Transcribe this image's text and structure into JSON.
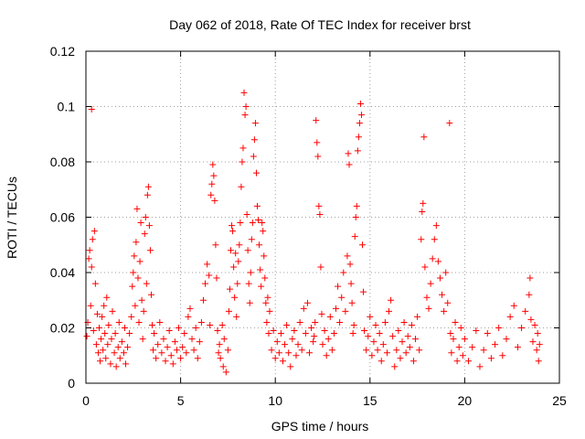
{
  "chart_data": {
    "type": "scatter",
    "title": "Day 062 of 2018, Rate Of TEC Index for receiver brst",
    "xlabel": "GPS time / hours",
    "ylabel": "ROTI / TECUs",
    "xlim": [
      0,
      25
    ],
    "ylim": [
      0,
      0.12
    ],
    "x_ticks": [
      0,
      5,
      10,
      15,
      20,
      25
    ],
    "x_tick_labels": [
      "0",
      "5",
      "10",
      "15",
      "20",
      "25"
    ],
    "y_ticks": [
      0,
      0.02,
      0.04,
      0.06,
      0.08,
      0.1,
      0.12
    ],
    "y_tick_labels": [
      "0",
      "0.02",
      "0.04",
      "0.06",
      "0.08",
      "0.1",
      "0.12"
    ],
    "grid": true,
    "marker": "+",
    "color": "#ff0000",
    "series": [
      {
        "name": "ROTI",
        "points": [
          [
            0.05,
            0.017
          ],
          [
            0.1,
            0.022
          ],
          [
            0.15,
            0.045
          ],
          [
            0.2,
            0.048
          ],
          [
            0.25,
            0.028
          ],
          [
            0.3,
            0.042
          ],
          [
            0.3,
            0.099
          ],
          [
            0.35,
            0.052
          ],
          [
            0.4,
            0.019
          ],
          [
            0.45,
            0.055
          ],
          [
            0.5,
            0.036
          ],
          [
            0.55,
            0.014
          ],
          [
            0.6,
            0.025
          ],
          [
            0.65,
            0.011
          ],
          [
            0.7,
            0.02
          ],
          [
            0.75,
            0.008
          ],
          [
            0.8,
            0.016
          ],
          [
            0.85,
            0.024
          ],
          [
            0.9,
            0.012
          ],
          [
            0.95,
            0.028
          ],
          [
            1.0,
            0.018
          ],
          [
            1.05,
            0.009
          ],
          [
            1.1,
            0.031
          ],
          [
            1.15,
            0.014
          ],
          [
            1.2,
            0.021
          ],
          [
            1.3,
            0.007
          ],
          [
            1.35,
            0.016
          ],
          [
            1.4,
            0.026
          ],
          [
            1.5,
            0.011
          ],
          [
            1.55,
            0.018
          ],
          [
            1.6,
            0.006
          ],
          [
            1.7,
            0.013
          ],
          [
            1.75,
            0.022
          ],
          [
            1.8,
            0.009
          ],
          [
            1.9,
            0.015
          ],
          [
            2.0,
            0.011
          ],
          [
            2.05,
            0.02
          ],
          [
            2.1,
            0.007
          ],
          [
            2.2,
            0.013
          ],
          [
            2.3,
            0.018
          ],
          [
            2.4,
            0.024
          ],
          [
            2.45,
            0.035
          ],
          [
            2.5,
            0.04
          ],
          [
            2.55,
            0.046
          ],
          [
            2.6,
            0.028
          ],
          [
            2.65,
            0.051
          ],
          [
            2.7,
            0.063
          ],
          [
            2.75,
            0.038
          ],
          [
            2.8,
            0.022
          ],
          [
            2.85,
            0.044
          ],
          [
            2.9,
            0.058
          ],
          [
            2.95,
            0.03
          ],
          [
            3.0,
            0.016
          ],
          [
            3.05,
            0.026
          ],
          [
            3.1,
            0.054
          ],
          [
            3.15,
            0.06
          ],
          [
            3.2,
            0.036
          ],
          [
            3.25,
            0.068
          ],
          [
            3.3,
            0.071
          ],
          [
            3.35,
            0.057
          ],
          [
            3.4,
            0.048
          ],
          [
            3.45,
            0.032
          ],
          [
            3.5,
            0.021
          ],
          [
            3.55,
            0.012
          ],
          [
            3.6,
            0.018
          ],
          [
            3.7,
            0.009
          ],
          [
            3.8,
            0.014
          ],
          [
            3.9,
            0.022
          ],
          [
            4.0,
            0.011
          ],
          [
            4.1,
            0.016
          ],
          [
            4.2,
            0.008
          ],
          [
            4.3,
            0.013
          ],
          [
            4.4,
            0.019
          ],
          [
            4.5,
            0.01
          ],
          [
            4.6,
            0.007
          ],
          [
            4.7,
            0.015
          ],
          [
            4.8,
            0.012
          ],
          [
            4.9,
            0.02
          ],
          [
            5.0,
            0.009
          ],
          [
            5.1,
            0.013
          ],
          [
            5.2,
            0.018
          ],
          [
            5.3,
            0.011
          ],
          [
            5.4,
            0.024
          ],
          [
            5.5,
            0.027
          ],
          [
            5.6,
            0.016
          ],
          [
            5.7,
            0.012
          ],
          [
            5.8,
            0.02
          ],
          [
            5.9,
            0.009
          ],
          [
            6.0,
            0.015
          ],
          [
            6.1,
            0.022
          ],
          [
            6.2,
            0.03
          ],
          [
            6.3,
            0.036
          ],
          [
            6.4,
            0.043
          ],
          [
            6.5,
            0.039
          ],
          [
            6.55,
            0.021
          ],
          [
            6.6,
            0.068
          ],
          [
            6.65,
            0.072
          ],
          [
            6.7,
            0.079
          ],
          [
            6.75,
            0.075
          ],
          [
            6.8,
            0.066
          ],
          [
            6.85,
            0.05
          ],
          [
            6.9,
            0.038
          ],
          [
            6.95,
            0.019
          ],
          [
            7.0,
            0.011
          ],
          [
            7.05,
            0.014
          ],
          [
            7.1,
            0.009
          ],
          [
            7.2,
            0.021
          ],
          [
            7.25,
            0.006
          ],
          [
            7.3,
            0.016
          ],
          [
            7.4,
            0.004
          ],
          [
            7.5,
            0.012
          ],
          [
            7.55,
            0.026
          ],
          [
            7.6,
            0.034
          ],
          [
            7.65,
            0.048
          ],
          [
            7.7,
            0.057
          ],
          [
            7.75,
            0.055
          ],
          [
            7.8,
            0.042
          ],
          [
            7.85,
            0.031
          ],
          [
            7.9,
            0.047
          ],
          [
            7.95,
            0.024
          ],
          [
            8.0,
            0.036
          ],
          [
            8.05,
            0.044
          ],
          [
            8.1,
            0.05
          ],
          [
            8.15,
            0.058
          ],
          [
            8.2,
            0.071
          ],
          [
            8.25,
            0.08
          ],
          [
            8.3,
            0.085
          ],
          [
            8.35,
            0.105
          ],
          [
            8.4,
            0.097
          ],
          [
            8.45,
            0.1
          ],
          [
            8.5,
            0.061
          ],
          [
            8.55,
            0.048
          ],
          [
            8.6,
            0.036
          ],
          [
            8.65,
            0.029
          ],
          [
            8.7,
            0.04
          ],
          [
            8.75,
            0.052
          ],
          [
            8.8,
            0.058
          ],
          [
            8.85,
            0.082
          ],
          [
            8.9,
            0.088
          ],
          [
            8.95,
            0.094
          ],
          [
            9.0,
            0.076
          ],
          [
            9.05,
            0.064
          ],
          [
            9.1,
            0.059
          ],
          [
            9.15,
            0.05
          ],
          [
            9.2,
            0.041
          ],
          [
            9.25,
            0.035
          ],
          [
            9.3,
            0.058
          ],
          [
            9.35,
            0.055
          ],
          [
            9.4,
            0.046
          ],
          [
            9.45,
            0.038
          ],
          [
            9.5,
            0.029
          ],
          [
            9.55,
            0.022
          ],
          [
            9.6,
            0.031
          ],
          [
            9.65,
            0.018
          ],
          [
            9.7,
            0.026
          ],
          [
            9.8,
            0.012
          ],
          [
            9.9,
            0.019
          ],
          [
            10.0,
            0.009
          ],
          [
            10.1,
            0.015
          ],
          [
            10.2,
            0.011
          ],
          [
            10.3,
            0.018
          ],
          [
            10.4,
            0.008
          ],
          [
            10.5,
            0.014
          ],
          [
            10.6,
            0.021
          ],
          [
            10.7,
            0.011
          ],
          [
            10.8,
            0.006
          ],
          [
            10.9,
            0.016
          ],
          [
            11.0,
            0.019
          ],
          [
            11.1,
            0.01
          ],
          [
            11.2,
            0.014
          ],
          [
            11.3,
            0.022
          ],
          [
            11.4,
            0.012
          ],
          [
            11.5,
            0.027
          ],
          [
            11.6,
            0.018
          ],
          [
            11.7,
            0.029
          ],
          [
            11.8,
            0.011
          ],
          [
            11.9,
            0.02
          ],
          [
            12.0,
            0.015
          ],
          [
            12.05,
            0.017
          ],
          [
            12.1,
            0.022
          ],
          [
            12.15,
            0.095
          ],
          [
            12.2,
            0.087
          ],
          [
            12.25,
            0.082
          ],
          [
            12.3,
            0.064
          ],
          [
            12.35,
            0.061
          ],
          [
            12.4,
            0.042
          ],
          [
            12.45,
            0.025
          ],
          [
            12.5,
            0.014
          ],
          [
            12.6,
            0.019
          ],
          [
            12.7,
            0.01
          ],
          [
            12.8,
            0.016
          ],
          [
            12.9,
            0.024
          ],
          [
            13.0,
            0.012
          ],
          [
            13.1,
            0.018
          ],
          [
            13.2,
            0.027
          ],
          [
            13.3,
            0.035
          ],
          [
            13.4,
            0.022
          ],
          [
            13.5,
            0.031
          ],
          [
            13.6,
            0.04
          ],
          [
            13.7,
            0.026
          ],
          [
            13.8,
            0.046
          ],
          [
            13.85,
            0.083
          ],
          [
            13.9,
            0.079
          ],
          [
            13.95,
            0.043
          ],
          [
            14.0,
            0.036
          ],
          [
            14.05,
            0.029
          ],
          [
            14.1,
            0.018
          ],
          [
            14.15,
            0.021
          ],
          [
            14.2,
            0.053
          ],
          [
            14.25,
            0.06
          ],
          [
            14.3,
            0.064
          ],
          [
            14.35,
            0.084
          ],
          [
            14.4,
            0.089
          ],
          [
            14.45,
            0.094
          ],
          [
            14.5,
            0.101
          ],
          [
            14.55,
            0.097
          ],
          [
            14.6,
            0.05
          ],
          [
            14.65,
            0.033
          ],
          [
            14.7,
            0.019
          ],
          [
            14.8,
            0.012
          ],
          [
            14.9,
            0.017
          ],
          [
            15.0,
            0.024
          ],
          [
            15.1,
            0.01
          ],
          [
            15.2,
            0.015
          ],
          [
            15.3,
            0.021
          ],
          [
            15.4,
            0.012
          ],
          [
            15.5,
            0.018
          ],
          [
            15.6,
            0.008
          ],
          [
            15.7,
            0.014
          ],
          [
            15.8,
            0.022
          ],
          [
            15.9,
            0.011
          ],
          [
            16.0,
            0.026
          ],
          [
            16.1,
            0.03
          ],
          [
            16.2,
            0.017
          ],
          [
            16.3,
            0.006
          ],
          [
            16.4,
            0.012
          ],
          [
            16.5,
            0.019
          ],
          [
            16.6,
            0.009
          ],
          [
            16.7,
            0.015
          ],
          [
            16.8,
            0.022
          ],
          [
            16.9,
            0.011
          ],
          [
            17.0,
            0.017
          ],
          [
            17.1,
            0.013
          ],
          [
            17.2,
            0.021
          ],
          [
            17.3,
            0.008
          ],
          [
            17.4,
            0.016
          ],
          [
            17.5,
            0.024
          ],
          [
            17.6,
            0.012
          ],
          [
            17.7,
            0.052
          ],
          [
            17.75,
            0.062
          ],
          [
            17.8,
            0.065
          ],
          [
            17.85,
            0.089
          ],
          [
            17.9,
            0.042
          ],
          [
            18.0,
            0.031
          ],
          [
            18.1,
            0.027
          ],
          [
            18.2,
            0.036
          ],
          [
            18.3,
            0.045
          ],
          [
            18.4,
            0.052
          ],
          [
            18.5,
            0.057
          ],
          [
            18.6,
            0.044
          ],
          [
            18.7,
            0.038
          ],
          [
            18.8,
            0.032
          ],
          [
            18.9,
            0.026
          ],
          [
            19.0,
            0.04
          ],
          [
            19.1,
            0.029
          ],
          [
            19.2,
            0.094
          ],
          [
            19.25,
            0.018
          ],
          [
            19.3,
            0.011
          ],
          [
            19.4,
            0.016
          ],
          [
            19.5,
            0.022
          ],
          [
            19.6,
            0.008
          ],
          [
            19.7,
            0.013
          ],
          [
            19.8,
            0.02
          ],
          [
            19.9,
            0.01
          ],
          [
            20.0,
            0.016
          ],
          [
            20.2,
            0.008
          ],
          [
            20.4,
            0.013
          ],
          [
            20.6,
            0.019
          ],
          [
            20.8,
            0.006
          ],
          [
            21.0,
            0.012
          ],
          [
            21.2,
            0.018
          ],
          [
            21.4,
            0.009
          ],
          [
            21.6,
            0.014
          ],
          [
            21.8,
            0.02
          ],
          [
            22.0,
            0.01
          ],
          [
            22.2,
            0.016
          ],
          [
            22.4,
            0.024
          ],
          [
            22.6,
            0.028
          ],
          [
            22.8,
            0.013
          ],
          [
            23.0,
            0.02
          ],
          [
            23.2,
            0.026
          ],
          [
            23.4,
            0.032
          ],
          [
            23.45,
            0.038
          ],
          [
            23.5,
            0.023
          ],
          [
            23.6,
            0.015
          ],
          [
            23.7,
            0.021
          ],
          [
            23.8,
            0.012
          ],
          [
            23.85,
            0.018
          ],
          [
            23.9,
            0.008
          ],
          [
            23.95,
            0.014
          ]
        ]
      }
    ]
  }
}
